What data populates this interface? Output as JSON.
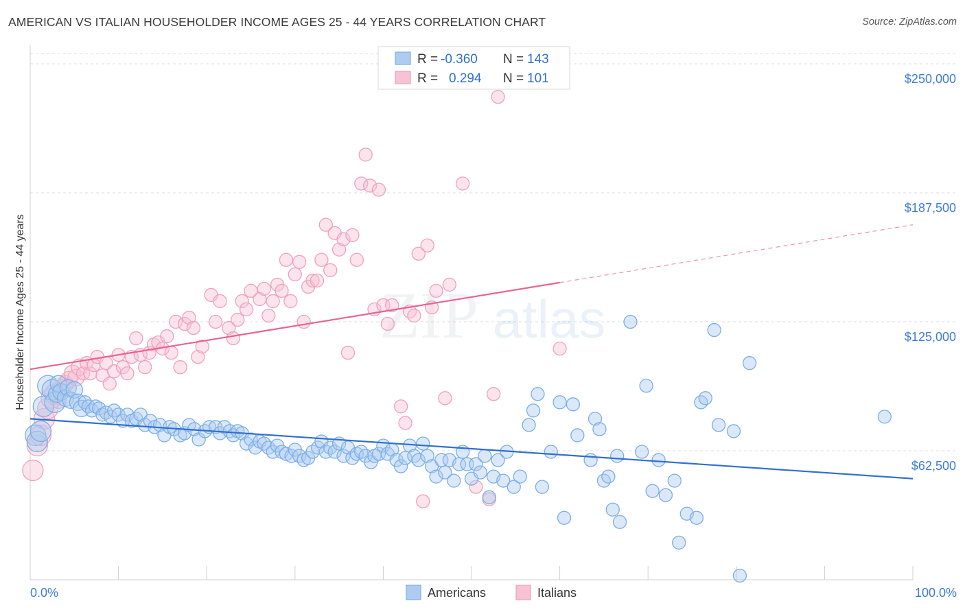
{
  "chart_data": {
    "type": "scatter",
    "title": "AMERICAN VS ITALIAN HOUSEHOLDER INCOME AGES 25 - 44 YEARS CORRELATION CHART",
    "source": "Source: ZipAtlas.com",
    "ylabel": "Householder Income Ages 25 - 44 years",
    "xlabel": "",
    "x_tick_labels": [
      "0.0%",
      "100.0%"
    ],
    "y_tick_labels": [
      "$62,500",
      "$125,000",
      "$187,500",
      "$250,000"
    ],
    "y_ticks": [
      62500,
      125000,
      187500,
      250000
    ],
    "xlim": [
      0,
      100
    ],
    "ylim": [
      0,
      255000
    ],
    "grid": true,
    "legend_position": "top-center",
    "watermark": "ZIPatlas",
    "stats": [
      {
        "r_label": "R =",
        "r_value": "-0.360",
        "n_label": "N =",
        "n_value": "143"
      },
      {
        "r_label": "R =",
        "r_value": "0.294",
        "n_label": "N =",
        "n_value": "101"
      }
    ],
    "series": [
      {
        "name": "Americans",
        "color": "#7baee8",
        "fill": "#aecbf0",
        "trend_color": "#2f6fd0",
        "trend": {
          "x0": 0,
          "y0": 78000,
          "x1": 100,
          "y1": 49000
        },
        "points": [
          [
            0.6,
            70000
          ],
          [
            0.8,
            67000
          ],
          [
            1.2,
            72000
          ],
          [
            1.5,
            84000
          ],
          [
            2,
            94000
          ],
          [
            2.5,
            92000
          ],
          [
            2.8,
            86000
          ],
          [
            3,
            90000
          ],
          [
            3.2,
            95000
          ],
          [
            3.5,
            91000
          ],
          [
            4,
            88000
          ],
          [
            4.3,
            93000
          ],
          [
            4.6,
            87000
          ],
          [
            5,
            92000
          ],
          [
            5.4,
            86000
          ],
          [
            5.8,
            83000
          ],
          [
            6.2,
            86000
          ],
          [
            6.6,
            84000
          ],
          [
            7,
            82000
          ],
          [
            7.4,
            84000
          ],
          [
            7.8,
            83000
          ],
          [
            8.2,
            80000
          ],
          [
            8.6,
            81000
          ],
          [
            9.1,
            79000
          ],
          [
            9.5,
            82000
          ],
          [
            10,
            80000
          ],
          [
            10.5,
            77000
          ],
          [
            11,
            80000
          ],
          [
            11.5,
            77000
          ],
          [
            12,
            78000
          ],
          [
            12.5,
            80000
          ],
          [
            13,
            75000
          ],
          [
            13.6,
            77000
          ],
          [
            14.1,
            74000
          ],
          [
            14.7,
            75000
          ],
          [
            15.2,
            70000
          ],
          [
            15.8,
            74000
          ],
          [
            16.3,
            73000
          ],
          [
            17,
            70000
          ],
          [
            17.5,
            71000
          ],
          [
            18,
            75000
          ],
          [
            18.6,
            73000
          ],
          [
            19.1,
            68000
          ],
          [
            19.8,
            72000
          ],
          [
            20.3,
            74000
          ],
          [
            21,
            74000
          ],
          [
            21.5,
            71000
          ],
          [
            22,
            74000
          ],
          [
            22.6,
            72000
          ],
          [
            23,
            70000
          ],
          [
            23.5,
            72000
          ],
          [
            24,
            71000
          ],
          [
            24.5,
            66000
          ],
          [
            25,
            68000
          ],
          [
            25.5,
            64000
          ],
          [
            26,
            67000
          ],
          [
            26.5,
            66000
          ],
          [
            27,
            64000
          ],
          [
            27.5,
            62000
          ],
          [
            28,
            65000
          ],
          [
            28.5,
            62000
          ],
          [
            29,
            61000
          ],
          [
            29.6,
            60000
          ],
          [
            30,
            63000
          ],
          [
            30.5,
            60000
          ],
          [
            31,
            58000
          ],
          [
            31.5,
            59000
          ],
          [
            32,
            62000
          ],
          [
            32.6,
            64000
          ],
          [
            33,
            67000
          ],
          [
            33.5,
            62000
          ],
          [
            34,
            64000
          ],
          [
            34.5,
            62000
          ],
          [
            35,
            66000
          ],
          [
            35.5,
            60000
          ],
          [
            36,
            64000
          ],
          [
            36.5,
            59000
          ],
          [
            37,
            61000
          ],
          [
            37.5,
            62000
          ],
          [
            38,
            60000
          ],
          [
            38.6,
            57000
          ],
          [
            39,
            60000
          ],
          [
            39.5,
            61000
          ],
          [
            40,
            65000
          ],
          [
            40.5,
            61000
          ],
          [
            41,
            63000
          ],
          [
            41.5,
            58000
          ],
          [
            42,
            55000
          ],
          [
            42.5,
            59000
          ],
          [
            43,
            65000
          ],
          [
            43.5,
            60000
          ],
          [
            44,
            58000
          ],
          [
            44.5,
            66000
          ],
          [
            45,
            60000
          ],
          [
            45.5,
            55000
          ],
          [
            46,
            50000
          ],
          [
            46.6,
            58000
          ],
          [
            47,
            52000
          ],
          [
            47.5,
            58000
          ],
          [
            48,
            48000
          ],
          [
            48.6,
            56000
          ],
          [
            49,
            62000
          ],
          [
            49.5,
            56000
          ],
          [
            50,
            49000
          ],
          [
            50.5,
            56000
          ],
          [
            51,
            52000
          ],
          [
            51.5,
            60000
          ],
          [
            52,
            40000
          ],
          [
            52.5,
            50000
          ],
          [
            53,
            58000
          ],
          [
            53.6,
            48000
          ],
          [
            54,
            62000
          ],
          [
            54.8,
            45000
          ],
          [
            55.5,
            50000
          ],
          [
            56.5,
            75000
          ],
          [
            57,
            82000
          ],
          [
            57.5,
            90000
          ],
          [
            58,
            45000
          ],
          [
            59,
            62000
          ],
          [
            60,
            86000
          ],
          [
            60.5,
            30000
          ],
          [
            61.5,
            85000
          ],
          [
            62,
            70000
          ],
          [
            63.5,
            58000
          ],
          [
            64,
            78000
          ],
          [
            64.5,
            73000
          ],
          [
            65,
            48000
          ],
          [
            65.5,
            50000
          ],
          [
            66,
            34000
          ],
          [
            66.5,
            60000
          ],
          [
            66.8,
            28000
          ],
          [
            68,
            125000
          ],
          [
            69.3,
            62000
          ],
          [
            69.8,
            94000
          ],
          [
            70.5,
            43000
          ],
          [
            71.2,
            58000
          ],
          [
            72,
            41000
          ],
          [
            73,
            48000
          ],
          [
            73.5,
            18000
          ],
          [
            74.4,
            32000
          ],
          [
            75.5,
            30000
          ],
          [
            76,
            86000
          ],
          [
            76.5,
            88000
          ],
          [
            77.5,
            121000
          ],
          [
            78,
            75000
          ],
          [
            79.7,
            72000
          ],
          [
            80.4,
            2000
          ],
          [
            81.5,
            105000
          ],
          [
            96.8,
            79000
          ]
        ]
      },
      {
        "name": "Italians",
        "color": "#f0a0bc",
        "fill": "#f7c3d4",
        "trend_color": "#e8638f",
        "trend": {
          "x0": 0,
          "y0": 102000,
          "x1": 60,
          "y1": 144000
        },
        "trend_extension": {
          "x0": 60,
          "y0": 144000,
          "x1": 100,
          "y1": 172000
        },
        "points": [
          [
            0.3,
            53000
          ],
          [
            0.8,
            65000
          ],
          [
            1.2,
            70000
          ],
          [
            1.6,
            78000
          ],
          [
            2,
            83000
          ],
          [
            2.4,
            88000
          ],
          [
            2.8,
            90000
          ],
          [
            3.2,
            87000
          ],
          [
            3.6,
            93000
          ],
          [
            4,
            95000
          ],
          [
            4.4,
            97000
          ],
          [
            4.8,
            100000
          ],
          [
            5.2,
            98000
          ],
          [
            5.6,
            103000
          ],
          [
            6,
            100000
          ],
          [
            6.4,
            105000
          ],
          [
            6.8,
            100000
          ],
          [
            7.2,
            104000
          ],
          [
            7.6,
            108000
          ],
          [
            8.2,
            99000
          ],
          [
            8.6,
            105000
          ],
          [
            9,
            95000
          ],
          [
            9.5,
            101000
          ],
          [
            10,
            109000
          ],
          [
            10.5,
            103000
          ],
          [
            11,
            100000
          ],
          [
            11.5,
            108000
          ],
          [
            12,
            117000
          ],
          [
            12.5,
            109000
          ],
          [
            13,
            103000
          ],
          [
            13.5,
            110000
          ],
          [
            14,
            114000
          ],
          [
            14.5,
            115000
          ],
          [
            15,
            112000
          ],
          [
            15.5,
            118000
          ],
          [
            16,
            110000
          ],
          [
            16.5,
            125000
          ],
          [
            17,
            103000
          ],
          [
            17.5,
            124000
          ],
          [
            18,
            127000
          ],
          [
            18.5,
            122000
          ],
          [
            19,
            108000
          ],
          [
            19.5,
            113000
          ],
          [
            20.5,
            138000
          ],
          [
            21,
            125000
          ],
          [
            21.5,
            135000
          ],
          [
            22.5,
            122000
          ],
          [
            23,
            117000
          ],
          [
            23.5,
            126000
          ],
          [
            24,
            135000
          ],
          [
            24.5,
            131000
          ],
          [
            25,
            140000
          ],
          [
            26,
            136000
          ],
          [
            26.5,
            141000
          ],
          [
            27,
            128000
          ],
          [
            27.5,
            135000
          ],
          [
            28,
            143000
          ],
          [
            28.5,
            140000
          ],
          [
            29,
            155000
          ],
          [
            29.5,
            135000
          ],
          [
            30,
            148000
          ],
          [
            30.5,
            154000
          ],
          [
            31,
            125000
          ],
          [
            31.5,
            142000
          ],
          [
            32,
            145000
          ],
          [
            32.5,
            145000
          ],
          [
            33,
            155000
          ],
          [
            33.5,
            172000
          ],
          [
            34,
            150000
          ],
          [
            34.5,
            168000
          ],
          [
            35,
            160000
          ],
          [
            35.5,
            165000
          ],
          [
            36,
            110000
          ],
          [
            36.5,
            167000
          ],
          [
            37,
            155000
          ],
          [
            37.5,
            192000
          ],
          [
            38,
            206000
          ],
          [
            38.5,
            191000
          ],
          [
            39,
            131000
          ],
          [
            39.5,
            189000
          ],
          [
            40,
            133000
          ],
          [
            40.5,
            124000
          ],
          [
            41,
            133000
          ],
          [
            42,
            84000
          ],
          [
            42.5,
            76000
          ],
          [
            43,
            130000
          ],
          [
            43.5,
            128000
          ],
          [
            44,
            158000
          ],
          [
            44.5,
            38000
          ],
          [
            45,
            162000
          ],
          [
            45.5,
            132000
          ],
          [
            46,
            140000
          ],
          [
            47,
            88000
          ],
          [
            47.5,
            143000
          ],
          [
            49,
            192000
          ],
          [
            50.5,
            45000
          ],
          [
            52,
            39000
          ],
          [
            52.5,
            90000
          ],
          [
            53,
            234000
          ],
          [
            60,
            112000
          ]
        ]
      }
    ]
  }
}
